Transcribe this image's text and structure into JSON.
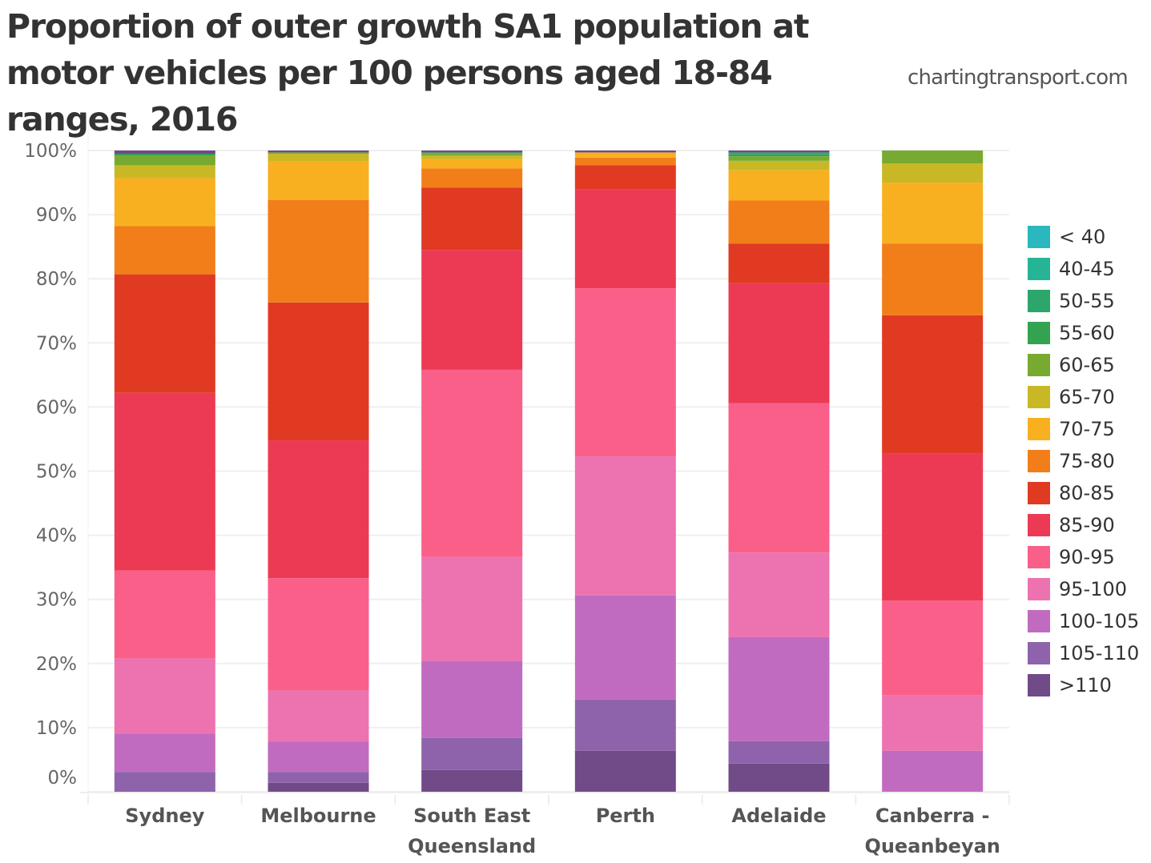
{
  "header": {
    "title": "Proportion of outer growth SA1 population at motor vehicles per 100 persons aged 18-84 ranges, 2016",
    "source": "chartingtransport.com"
  },
  "chart_data": {
    "type": "bar",
    "stacked": true,
    "title": "Proportion of outer growth SA1 population at motor vehicles per 100 persons aged 18-84 ranges, 2016",
    "xlabel": "",
    "ylabel": "",
    "ylim": [
      0,
      100
    ],
    "yticks": [
      "0%",
      "10%",
      "20%",
      "30%",
      "40%",
      "50%",
      "60%",
      "70%",
      "80%",
      "90%",
      "100%"
    ],
    "ytick_values": [
      0,
      10,
      20,
      30,
      40,
      50,
      60,
      70,
      80,
      90,
      100
    ],
    "grid": true,
    "legend_position": "right",
    "categories": [
      "Sydney",
      "Melbourne",
      "South East Queensland",
      "Perth",
      "Adelaide",
      "Canberra - Queanbeyan"
    ],
    "category_lines": [
      [
        "Sydney"
      ],
      [
        "Melbourne"
      ],
      [
        "South East",
        "Queensland"
      ],
      [
        "Perth"
      ],
      [
        "Adelaide"
      ],
      [
        "Canberra -",
        "Queanbeyan"
      ]
    ],
    "series": [
      {
        "name": ">110",
        "color": "#714a88",
        "values": [
          0.1,
          1.4,
          3.4,
          6.4,
          4.4,
          0
        ]
      },
      {
        "name": "105-110",
        "color": "#8f63ab",
        "values": [
          3.0,
          1.7,
          5.0,
          8.0,
          3.5,
          0
        ]
      },
      {
        "name": "100-105",
        "color": "#c16bc0",
        "values": [
          6.0,
          4.7,
          12.0,
          16.2,
          16.2,
          6.4
        ]
      },
      {
        "name": "95-100",
        "color": "#ec73b0",
        "values": [
          11.7,
          8.0,
          16.2,
          21.7,
          13.2,
          8.7
        ]
      },
      {
        "name": "90-95",
        "color": "#fa5f8a",
        "values": [
          13.7,
          17.5,
          29.2,
          26.2,
          23.3,
          14.7
        ]
      },
      {
        "name": "85-90",
        "color": "#ed3a54",
        "values": [
          27.7,
          21.5,
          18.7,
          15.5,
          18.7,
          23.0
        ]
      },
      {
        "name": "80-85",
        "color": "#e03a23",
        "values": [
          18.5,
          21.5,
          9.7,
          3.7,
          6.2,
          21.5
        ]
      },
      {
        "name": "75-80",
        "color": "#f27e1a",
        "values": [
          7.5,
          16.0,
          3.0,
          1.2,
          6.7,
          11.2
        ]
      },
      {
        "name": "70-75",
        "color": "#f8b020",
        "values": [
          7.5,
          6.0,
          1.5,
          0.8,
          4.7,
          9.5
        ]
      },
      {
        "name": "65-70",
        "color": "#c9b825",
        "values": [
          2.0,
          1.2,
          0.5,
          0,
          1.5,
          3.0
        ]
      },
      {
        "name": "60-65",
        "color": "#78aa31",
        "values": [
          1.5,
          0.2,
          0.4,
          0,
          0.7,
          2.0
        ]
      },
      {
        "name": "55-60",
        "color": "#33a352",
        "values": [
          0.3,
          0,
          0.1,
          0,
          0.3,
          0
        ]
      },
      {
        "name": "50-55",
        "color": "#2ca66a",
        "values": [
          0,
          0,
          0,
          0,
          0.3,
          0
        ]
      },
      {
        "name": "40-45",
        "color": "#25b596",
        "values": [
          0,
          0,
          0,
          0,
          0,
          0
        ]
      },
      {
        "name": "< 40",
        "color": "#2ab7bd",
        "values": [
          0,
          0,
          0,
          0,
          0,
          0
        ]
      },
      {
        "name": "",
        "color": "#714a88",
        "values": [
          0.5,
          0.3,
          0.3,
          0.3,
          0.3,
          0
        ]
      }
    ],
    "legend": [
      {
        "label": "< 40",
        "color": "#2ab7bd"
      },
      {
        "label": "40-45",
        "color": "#25b596"
      },
      {
        "label": "50-55",
        "color": "#2ca66a"
      },
      {
        "label": "55-60",
        "color": "#33a352"
      },
      {
        "label": "60-65",
        "color": "#78aa31"
      },
      {
        "label": "65-70",
        "color": "#c9b825"
      },
      {
        "label": "70-75",
        "color": "#f8b020"
      },
      {
        "label": "75-80",
        "color": "#f27e1a"
      },
      {
        "label": "80-85",
        "color": "#e03a23"
      },
      {
        "label": "85-90",
        "color": "#ed3a54"
      },
      {
        "label": "90-95",
        "color": "#fa5f8a"
      },
      {
        "label": "95-100",
        "color": "#ec73b0"
      },
      {
        "label": "100-105",
        "color": "#c16bc0"
      },
      {
        "label": "105-110",
        "color": "#8f63ab"
      },
      {
        "label": ">110",
        "color": "#714a88"
      }
    ]
  }
}
